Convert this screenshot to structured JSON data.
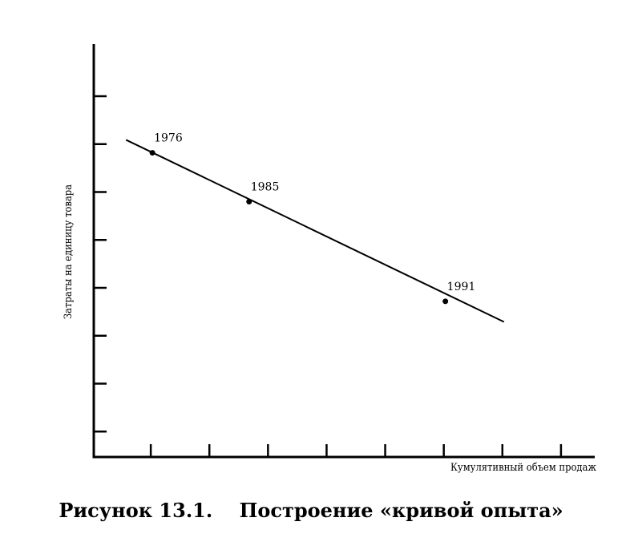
{
  "chart_data": {
    "type": "line",
    "xlabel": "Кумулятивный объем продаж",
    "ylabel": "Затраты на единицу товара",
    "xlim": [
      0,
      9
    ],
    "ylim": [
      0,
      8
    ],
    "x_ticks": [
      1,
      2,
      3,
      4,
      5,
      6,
      7,
      8
    ],
    "y_ticks": [
      1,
      2,
      3,
      4,
      5,
      6,
      7,
      8
    ],
    "grid": false,
    "series": [
      {
        "x": [
          0.55,
          7.0
        ],
        "y": [
          6.62,
          2.82
        ]
      }
    ],
    "points": [
      {
        "label": "1976",
        "x": 1.0,
        "y": 6.35
      },
      {
        "label": "1985",
        "x": 2.65,
        "y": 5.33
      },
      {
        "label": "1991",
        "x": 6.0,
        "y": 3.25
      }
    ]
  },
  "caption": {
    "number": "Рисунок 13.1.",
    "title": "Построение «кривой опыта»"
  }
}
